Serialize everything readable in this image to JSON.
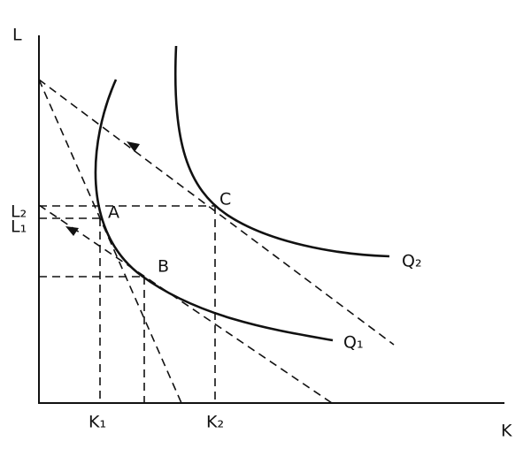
{
  "axes": {
    "y_label": "L",
    "x_label": "K"
  },
  "ticks": {
    "l2": "L₂",
    "l1": "L₁",
    "k1": "K₁",
    "k2": "K₂"
  },
  "points": {
    "a": "A",
    "b": "B",
    "c": "C"
  },
  "curves": {
    "q1": "Q₁",
    "q2": "Q₂"
  }
}
